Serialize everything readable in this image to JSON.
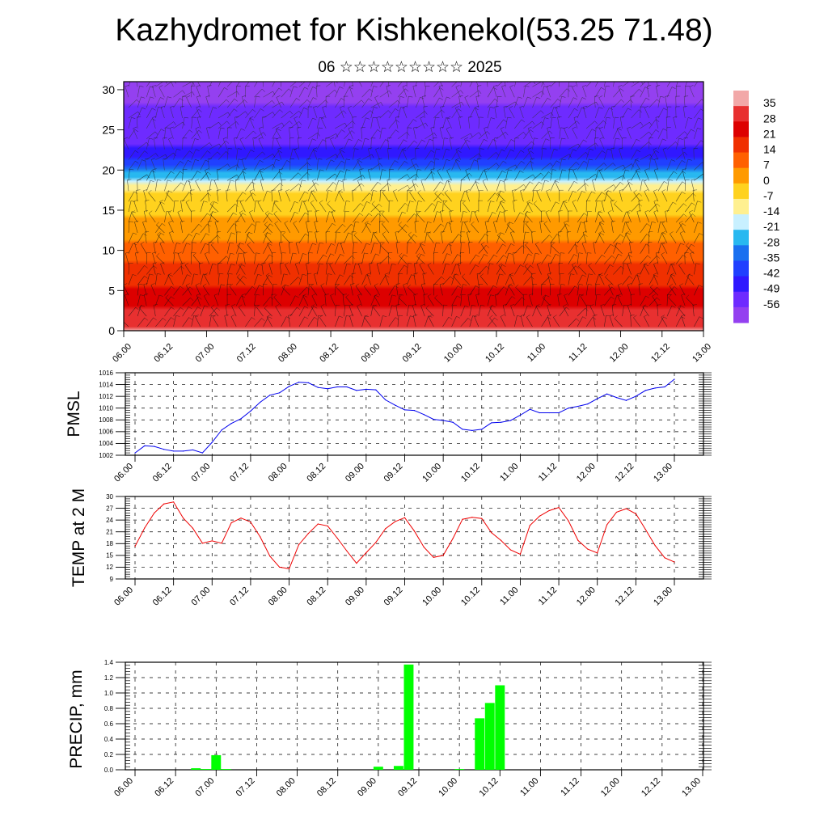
{
  "title": "Kazhydromet for Kishkenekol(53.25 71.48)",
  "subtitle": "06 ☆☆☆☆☆☆☆☆☆ 2025",
  "time_labels": [
    "06.00",
    "06.12",
    "07.00",
    "07.12",
    "08.00",
    "08.12",
    "09.00",
    "09.12",
    "10.00",
    "10.12",
    "11.00",
    "11.12",
    "12.00",
    "12.12",
    "13.00"
  ],
  "chart_data": [
    {
      "type": "heatmap",
      "name": "cross-section",
      "x_range": [
        "06.00",
        "13.00"
      ],
      "ylim": [
        0,
        31
      ],
      "y_ticks": [
        0,
        5,
        10,
        15,
        20,
        25,
        30
      ],
      "colorbar": {
        "labels": [
          "35",
          "28",
          "21",
          "14",
          "7",
          "0",
          "-7",
          "-14",
          "-21",
          "-28",
          "-35",
          "-42",
          "-49",
          "-56"
        ],
        "colors": [
          "#f2a8a8",
          "#e83030",
          "#dd0000",
          "#f03000",
          "#ff6000",
          "#ff9a00",
          "#ffd21e",
          "#fff090",
          "#c8f0ff",
          "#28b8f0",
          "#1a70f0",
          "#2040ff",
          "#3018ff",
          "#6e2bff",
          "#9440f0"
        ]
      },
      "vertical_temperature_profile": {
        "levels": [
          0,
          5,
          10,
          13,
          17,
          19,
          21,
          23,
          26,
          31
        ],
        "values": [
          32,
          20,
          9,
          2,
          -6,
          -20,
          -38,
          -47,
          -52,
          -54
        ]
      },
      "overlay": "wind barbs"
    },
    {
      "type": "line",
      "name": "PMSL",
      "ylabel": "PMSL",
      "ylim": [
        1002,
        1016
      ],
      "y_ticks": [
        1002,
        1004,
        1006,
        1008,
        1010,
        1012,
        1014,
        1016
      ],
      "step_hours": 3,
      "color": "#0000ee",
      "values": [
        1002.4,
        1003.6,
        1003.5,
        1003.0,
        1002.7,
        1002.7,
        1002.9,
        1002.4,
        1004.2,
        1006.3,
        1007.4,
        1008.2,
        1009.5,
        1011.0,
        1012.2,
        1012.6,
        1013.7,
        1014.4,
        1014.3,
        1013.5,
        1013.3,
        1013.6,
        1013.6,
        1013.0,
        1013.2,
        1013.1,
        1011.4,
        1010.5,
        1009.7,
        1009.6,
        1008.9,
        1008.1,
        1007.9,
        1007.6,
        1006.4,
        1006.2,
        1006.4,
        1007.5,
        1007.6,
        1007.9,
        1008.8,
        1009.8,
        1009.2,
        1009.2,
        1009.2,
        1010.0,
        1010.3,
        1010.7,
        1011.6,
        1012.4,
        1011.8,
        1011.3,
        1012.0,
        1013.0,
        1013.4,
        1013.6,
        1014.9
      ]
    },
    {
      "type": "line",
      "name": "TEMP at 2 M",
      "ylabel": "TEMP at 2 M",
      "ylim": [
        9,
        30
      ],
      "y_ticks": [
        9,
        12,
        15,
        18,
        21,
        24,
        27,
        30
      ],
      "step_hours": 3,
      "color": "#ee0000",
      "values": [
        17.3,
        22.0,
        25.8,
        28.1,
        28.6,
        24.5,
        21.9,
        18.1,
        18.7,
        18.1,
        23.3,
        24.5,
        23.5,
        19.7,
        14.8,
        12.0,
        11.6,
        17.7,
        20.6,
        23.0,
        22.5,
        19.4,
        16.1,
        13.0,
        15.7,
        18.3,
        21.8,
        23.6,
        24.6,
        21.2,
        17.1,
        14.5,
        15.0,
        19.3,
        24.2,
        24.7,
        24.4,
        20.8,
        18.8,
        16.4,
        15.3,
        22.6,
        25.0,
        26.4,
        27.2,
        23.8,
        18.8,
        16.6,
        15.6,
        22.8,
        26.0,
        26.9,
        25.6,
        21.6,
        17.5,
        14.4,
        13.3
      ]
    },
    {
      "type": "bar",
      "name": "PRECIP, mm",
      "ylabel": "PRECIP, mm",
      "ylim": [
        0,
        1.4
      ],
      "y_ticks": [
        0.0,
        0.2,
        0.4,
        0.6,
        0.8,
        1.0,
        1.2,
        1.4
      ],
      "color": "#00ff00",
      "bars": [
        {
          "time": "06.18",
          "value": 0.02
        },
        {
          "time": "06.21",
          "value": 0.01
        },
        {
          "time": "07.00",
          "value": 0.19
        },
        {
          "time": "07.03",
          "value": 0.01
        },
        {
          "time": "09.00",
          "value": 0.04
        },
        {
          "time": "09.06",
          "value": 0.05
        },
        {
          "time": "09.09",
          "value": 1.37
        },
        {
          "time": "10.00",
          "value": 0.01
        },
        {
          "time": "10.06",
          "value": 0.67
        },
        {
          "time": "10.09",
          "value": 0.87
        },
        {
          "time": "10.12",
          "value": 1.1
        }
      ]
    }
  ]
}
